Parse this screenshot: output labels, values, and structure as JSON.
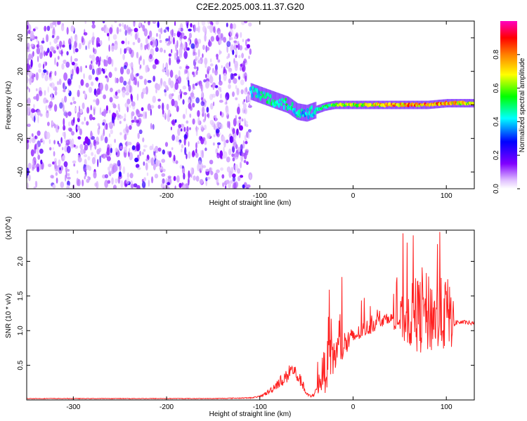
{
  "figure": {
    "title": "C2E2.2025.003.11.37.G20"
  },
  "chart_data": [
    {
      "type": "heatmap",
      "xlabel": "Height of straight line (km)",
      "ylabel": "Frequency (Hz)",
      "xlim": [
        -350,
        130
      ],
      "ylim": [
        -50,
        50
      ],
      "x_ticks": [
        -300,
        -200,
        -100,
        0,
        100
      ],
      "x_tick_labels": [
        "-300",
        "-200",
        "-100",
        "0",
        "100"
      ],
      "y_ticks": [
        -40,
        -20,
        0,
        20,
        40
      ],
      "y_tick_labels": [
        "-40",
        "-20",
        "0",
        "20",
        "40"
      ],
      "colorbar": {
        "label": "Normalized spectral amplitude",
        "range": [
          0,
          1
        ],
        "ticks": [
          0.0,
          0.2,
          0.4,
          0.6,
          0.8
        ],
        "tick_labels": [
          "0.0",
          "0.2",
          "0.4",
          "0.6",
          "0.8"
        ],
        "colormap": [
          "#ffffff",
          "#8000ff",
          "#0000ff",
          "#00ffff",
          "#00ff00",
          "#ffff00",
          "#ff8000",
          "#ff0000",
          "#ff00c0"
        ]
      },
      "noise_region": {
        "x_range": [
          -350,
          -110
        ],
        "level": 0.15
      },
      "signal_trace": {
        "x": [
          -110,
          -100,
          -90,
          -80,
          -70,
          -60,
          -50,
          -40,
          -30,
          -20,
          -10,
          0,
          20,
          40,
          60,
          80,
          100,
          130
        ],
        "y": [
          8,
          6,
          4,
          2,
          0,
          -4,
          -5,
          -3,
          -1,
          0,
          0,
          0,
          0,
          0,
          0,
          0,
          1,
          1
        ],
        "amplitude": [
          0.45,
          0.45,
          0.5,
          0.5,
          0.5,
          0.45,
          0.45,
          0.5,
          0.55,
          0.6,
          0.65,
          0.7,
          0.75,
          0.8,
          0.82,
          0.85,
          0.8,
          0.7
        ]
      },
      "grid": false
    },
    {
      "type": "line",
      "xlabel": "Height of straight line (km)",
      "ylabel": "SNR (10 * v/v)",
      "y_scale_label": "(x10^4)",
      "xlim": [
        -350,
        130
      ],
      "ylim": [
        0,
        2.45
      ],
      "x_ticks": [
        -300,
        -200,
        -100,
        0,
        100
      ],
      "x_tick_labels": [
        "-300",
        "-200",
        "-100",
        "0",
        "100"
      ],
      "y_ticks": [
        0.5,
        1.0,
        1.5,
        2.0
      ],
      "y_tick_labels": [
        "0.5",
        "1.0",
        "1.5",
        "2.0"
      ],
      "series": [
        {
          "color": "#ff2020",
          "x": [
            -350,
            -300,
            -250,
            -200,
            -150,
            -110,
            -100,
            -90,
            -80,
            -70,
            -65,
            -60,
            -55,
            -50,
            -45,
            -40,
            -35,
            -30,
            -25,
            -20,
            -15,
            -10,
            -5,
            0,
            10,
            20,
            30,
            40,
            50,
            60,
            70,
            80,
            90,
            100,
            105,
            110,
            120,
            130
          ],
          "y": [
            0.02,
            0.02,
            0.02,
            0.02,
            0.02,
            0.03,
            0.05,
            0.12,
            0.25,
            0.35,
            0.45,
            0.35,
            0.25,
            0.08,
            0.05,
            0.12,
            0.3,
            0.45,
            0.55,
            0.65,
            0.72,
            0.78,
            0.85,
            0.9,
            1.0,
            1.08,
            1.15,
            1.18,
            1.15,
            1.2,
            1.22,
            1.25,
            1.2,
            1.25,
            1.2,
            1.12,
            1.12,
            1.1
          ],
          "spread": [
            0.005,
            0.005,
            0.005,
            0.005,
            0.005,
            0.008,
            0.01,
            0.04,
            0.08,
            0.1,
            0.12,
            0.1,
            0.08,
            0.03,
            0.02,
            0.06,
            0.2,
            0.35,
            0.35,
            0.3,
            0.25,
            0.22,
            0.2,
            0.12,
            0.12,
            0.12,
            0.1,
            0.06,
            0.3,
            0.45,
            0.55,
            0.6,
            0.55,
            0.55,
            0.5,
            0.04,
            0.03,
            0.03
          ]
        }
      ],
      "grid": false
    }
  ]
}
